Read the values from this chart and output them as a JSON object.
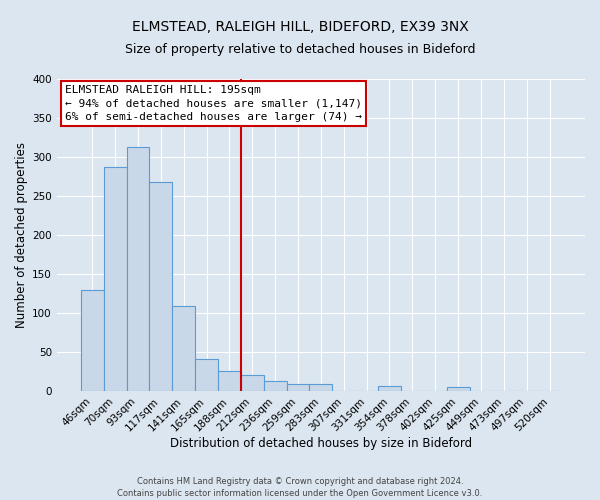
{
  "title": "ELMSTEAD, RALEIGH HILL, BIDEFORD, EX39 3NX",
  "subtitle": "Size of property relative to detached houses in Bideford",
  "xlabel": "Distribution of detached houses by size in Bideford",
  "ylabel": "Number of detached properties",
  "bar_labels": [
    "46sqm",
    "70sqm",
    "93sqm",
    "117sqm",
    "141sqm",
    "165sqm",
    "188sqm",
    "212sqm",
    "236sqm",
    "259sqm",
    "283sqm",
    "307sqm",
    "331sqm",
    "354sqm",
    "378sqm",
    "402sqm",
    "425sqm",
    "449sqm",
    "473sqm",
    "497sqm",
    "520sqm"
  ],
  "bar_values": [
    130,
    287,
    313,
    268,
    109,
    41,
    26,
    21,
    13,
    9,
    9,
    0,
    0,
    6,
    0,
    0,
    5,
    0,
    0,
    0,
    0
  ],
  "bar_color": "#c8d8e8",
  "bar_edge_color": "#5b9bd5",
  "ylim": [
    0,
    400
  ],
  "yticks": [
    0,
    50,
    100,
    150,
    200,
    250,
    300,
    350,
    400
  ],
  "vline_color": "#cc0000",
  "annotation_title": "ELMSTEAD RALEIGH HILL: 195sqm",
  "annotation_line1": "← 94% of detached houses are smaller (1,147)",
  "annotation_line2": "6% of semi-detached houses are larger (74) →",
  "annotation_box_color": "#cc0000",
  "background_color": "#dce6f0",
  "plot_bg_color": "#dce6f0",
  "footer_line1": "Contains HM Land Registry data © Crown copyright and database right 2024.",
  "footer_line2": "Contains public sector information licensed under the Open Government Licence v3.0.",
  "title_fontsize": 10,
  "subtitle_fontsize": 9,
  "axis_label_fontsize": 8.5,
  "tick_fontsize": 7.5,
  "annotation_fontsize": 8,
  "footer_fontsize": 6
}
